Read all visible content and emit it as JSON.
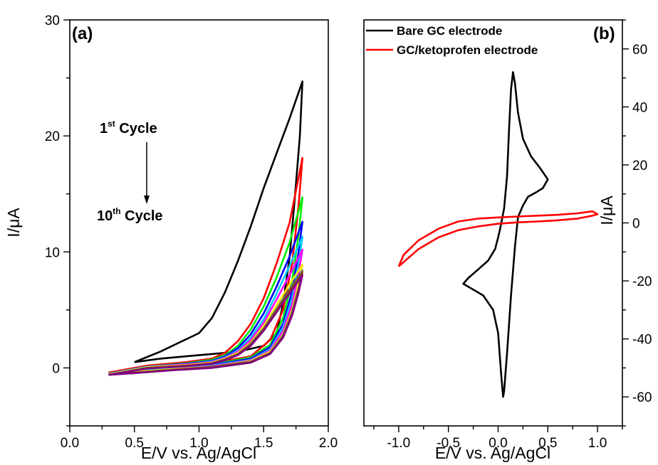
{
  "chart_data": [
    {
      "type": "line",
      "panel_label": "(a)",
      "xlabel": "E/V vs. Ag/AgCl",
      "ylabel": "I/μA",
      "xlim": [
        0.0,
        2.0
      ],
      "ylim": [
        -5,
        30
      ],
      "x_ticks": [
        "0.0",
        "0.5",
        "1.0",
        "1.5",
        "2.0"
      ],
      "y_ticks": [
        "0",
        "10",
        "20",
        "30"
      ],
      "annotation": {
        "first": {
          "number": "1",
          "sup": "st",
          "rest": " Cycle"
        },
        "last": {
          "number": "10",
          "sup": "th",
          "rest": " Cycle"
        }
      },
      "series": [
        {
          "color": "#000000",
          "points": [
            [
              0.5,
              0.5
            ],
            [
              0.7,
              1.4
            ],
            [
              0.85,
              2.2
            ],
            [
              1.0,
              3.0
            ],
            [
              1.1,
              4.3
            ],
            [
              1.2,
              6.5
            ],
            [
              1.3,
              9.2
            ],
            [
              1.4,
              12.2
            ],
            [
              1.5,
              15.5
            ],
            [
              1.6,
              18.5
            ],
            [
              1.7,
              21.5
            ],
            [
              1.8,
              24.7
            ],
            [
              1.78,
              20.0
            ],
            [
              1.74,
              14.5
            ],
            [
              1.7,
              9.5
            ],
            [
              1.65,
              5.5
            ],
            [
              1.6,
              3.0
            ],
            [
              1.5,
              1.9
            ],
            [
              1.3,
              1.4
            ],
            [
              1.1,
              1.2
            ],
            [
              0.9,
              1.0
            ],
            [
              0.7,
              0.8
            ],
            [
              0.5,
              0.5
            ]
          ]
        },
        {
          "color": "#ff0000",
          "points": [
            [
              0.3,
              -0.4
            ],
            [
              0.6,
              0.2
            ],
            [
              0.9,
              0.5
            ],
            [
              1.1,
              0.8
            ],
            [
              1.2,
              1.3
            ],
            [
              1.3,
              2.3
            ],
            [
              1.4,
              3.8
            ],
            [
              1.5,
              6.0
            ],
            [
              1.6,
              9.0
            ],
            [
              1.7,
              12.5
            ],
            [
              1.8,
              18.1
            ],
            [
              1.77,
              14.0
            ],
            [
              1.72,
              9.0
            ],
            [
              1.65,
              5.0
            ],
            [
              1.55,
              2.4
            ],
            [
              1.4,
              1.0
            ],
            [
              1.1,
              0.4
            ],
            [
              0.8,
              0.1
            ],
            [
              0.5,
              -0.2
            ],
            [
              0.3,
              -0.4
            ]
          ]
        },
        {
          "color": "#00ee00",
          "points": [
            [
              0.3,
              -0.5
            ],
            [
              0.6,
              0.1
            ],
            [
              0.9,
              0.4
            ],
            [
              1.1,
              0.7
            ],
            [
              1.2,
              1.1
            ],
            [
              1.3,
              1.9
            ],
            [
              1.4,
              3.3
            ],
            [
              1.5,
              5.3
            ],
            [
              1.6,
              7.8
            ],
            [
              1.7,
              10.8
            ],
            [
              1.8,
              14.7
            ],
            [
              1.77,
              11.5
            ],
            [
              1.72,
              7.5
            ],
            [
              1.65,
              4.3
            ],
            [
              1.55,
              2.0
            ],
            [
              1.4,
              0.9
            ],
            [
              1.1,
              0.3
            ],
            [
              0.8,
              0.0
            ],
            [
              0.5,
              -0.3
            ],
            [
              0.3,
              -0.5
            ]
          ]
        },
        {
          "color": "#0000ff",
          "points": [
            [
              0.3,
              -0.5
            ],
            [
              0.6,
              0.1
            ],
            [
              0.9,
              0.35
            ],
            [
              1.1,
              0.6
            ],
            [
              1.2,
              1.0
            ],
            [
              1.3,
              1.7
            ],
            [
              1.4,
              2.9
            ],
            [
              1.5,
              4.7
            ],
            [
              1.6,
              7.0
            ],
            [
              1.7,
              9.6
            ],
            [
              1.8,
              12.6
            ],
            [
              1.77,
              10.0
            ],
            [
              1.72,
              6.6
            ],
            [
              1.65,
              3.8
            ],
            [
              1.55,
              1.8
            ],
            [
              1.4,
              0.8
            ],
            [
              1.1,
              0.25
            ],
            [
              0.8,
              0.0
            ],
            [
              0.5,
              -0.3
            ],
            [
              0.3,
              -0.5
            ]
          ]
        },
        {
          "color": "#00ccff",
          "points": [
            [
              0.3,
              -0.5
            ],
            [
              0.6,
              0.1
            ],
            [
              0.9,
              0.3
            ],
            [
              1.1,
              0.55
            ],
            [
              1.2,
              0.9
            ],
            [
              1.3,
              1.5
            ],
            [
              1.4,
              2.6
            ],
            [
              1.5,
              4.2
            ],
            [
              1.6,
              6.4
            ],
            [
              1.7,
              8.8
            ],
            [
              1.8,
              11.3
            ],
            [
              1.77,
              9.0
            ],
            [
              1.72,
              6.0
            ],
            [
              1.65,
              3.5
            ],
            [
              1.55,
              1.6
            ],
            [
              1.4,
              0.7
            ],
            [
              1.1,
              0.2
            ],
            [
              0.8,
              -0.05
            ],
            [
              0.5,
              -0.3
            ],
            [
              0.3,
              -0.5
            ]
          ]
        },
        {
          "color": "#ff00ff",
          "points": [
            [
              0.3,
              -0.55
            ],
            [
              0.6,
              0.05
            ],
            [
              0.9,
              0.3
            ],
            [
              1.1,
              0.5
            ],
            [
              1.2,
              0.85
            ],
            [
              1.3,
              1.4
            ],
            [
              1.4,
              2.4
            ],
            [
              1.5,
              3.9
            ],
            [
              1.6,
              5.9
            ],
            [
              1.7,
              8.0
            ],
            [
              1.8,
              10.2
            ],
            [
              1.77,
              8.2
            ],
            [
              1.72,
              5.5
            ],
            [
              1.65,
              3.2
            ],
            [
              1.55,
              1.5
            ],
            [
              1.4,
              0.65
            ],
            [
              1.1,
              0.15
            ],
            [
              0.8,
              -0.1
            ],
            [
              0.5,
              -0.35
            ],
            [
              0.3,
              -0.55
            ]
          ]
        },
        {
          "color": "#ffee00",
          "points": [
            [
              0.3,
              -0.55
            ],
            [
              0.6,
              0.05
            ],
            [
              0.9,
              0.25
            ],
            [
              1.1,
              0.45
            ],
            [
              1.2,
              0.8
            ],
            [
              1.3,
              1.3
            ],
            [
              1.4,
              2.2
            ],
            [
              1.5,
              3.6
            ],
            [
              1.6,
              5.4
            ],
            [
              1.7,
              7.2
            ],
            [
              1.8,
              8.9
            ],
            [
              1.77,
              7.3
            ],
            [
              1.72,
              5.0
            ],
            [
              1.65,
              2.9
            ],
            [
              1.55,
              1.4
            ],
            [
              1.4,
              0.6
            ],
            [
              1.1,
              0.1
            ],
            [
              0.8,
              -0.1
            ],
            [
              0.5,
              -0.35
            ],
            [
              0.3,
              -0.55
            ]
          ]
        },
        {
          "color": "#666666",
          "points": [
            [
              0.3,
              -0.6
            ],
            [
              0.6,
              0.0
            ],
            [
              0.9,
              0.2
            ],
            [
              1.1,
              0.4
            ],
            [
              1.2,
              0.75
            ],
            [
              1.3,
              1.2
            ],
            [
              1.4,
              2.1
            ],
            [
              1.5,
              3.4
            ],
            [
              1.6,
              5.1
            ],
            [
              1.7,
              6.8
            ],
            [
              1.8,
              8.4
            ],
            [
              1.77,
              6.9
            ],
            [
              1.72,
              4.8
            ],
            [
              1.65,
              2.8
            ],
            [
              1.55,
              1.3
            ],
            [
              1.4,
              0.55
            ],
            [
              1.1,
              0.1
            ],
            [
              0.8,
              -0.15
            ],
            [
              0.5,
              -0.4
            ],
            [
              0.3,
              -0.6
            ]
          ]
        },
        {
          "color": "#8b4513",
          "points": [
            [
              0.3,
              -0.6
            ],
            [
              0.6,
              0.0
            ],
            [
              0.9,
              0.2
            ],
            [
              1.1,
              0.4
            ],
            [
              1.2,
              0.7
            ],
            [
              1.3,
              1.15
            ],
            [
              1.4,
              2.0
            ],
            [
              1.5,
              3.3
            ],
            [
              1.6,
              4.9
            ],
            [
              1.7,
              6.6
            ],
            [
              1.8,
              8.2
            ],
            [
              1.77,
              6.7
            ],
            [
              1.72,
              4.6
            ],
            [
              1.65,
              2.7
            ],
            [
              1.55,
              1.25
            ],
            [
              1.4,
              0.5
            ],
            [
              1.1,
              0.05
            ],
            [
              0.8,
              -0.15
            ],
            [
              0.5,
              -0.4
            ],
            [
              0.3,
              -0.6
            ]
          ]
        },
        {
          "color": "#800080",
          "points": [
            [
              0.3,
              -0.6
            ],
            [
              0.6,
              -0.05
            ],
            [
              0.9,
              0.15
            ],
            [
              1.1,
              0.35
            ],
            [
              1.2,
              0.65
            ],
            [
              1.3,
              1.1
            ],
            [
              1.4,
              1.9
            ],
            [
              1.5,
              3.2
            ],
            [
              1.6,
              4.8
            ],
            [
              1.7,
              6.4
            ],
            [
              1.8,
              8.0
            ],
            [
              1.77,
              6.5
            ],
            [
              1.72,
              4.5
            ],
            [
              1.65,
              2.6
            ],
            [
              1.55,
              1.2
            ],
            [
              1.4,
              0.45
            ],
            [
              1.1,
              0.0
            ],
            [
              0.8,
              -0.2
            ],
            [
              0.5,
              -0.45
            ],
            [
              0.3,
              -0.6
            ]
          ]
        }
      ]
    },
    {
      "type": "line",
      "panel_label": "(b)",
      "xlabel": "E/V vs. Ag/AgCl",
      "ylabel": "I/μA",
      "xlim": [
        -1.35,
        1.25
      ],
      "ylim": [
        -70,
        70
      ],
      "x_ticks": [
        "-1.0",
        "-0.5",
        "0.0",
        "0.5",
        "1.0"
      ],
      "y_ticks": [
        "-60",
        "-40",
        "-20",
        "0",
        "20",
        "40",
        "60"
      ],
      "y_axis_side": "right",
      "legend": [
        {
          "label": "Bare GC electrode",
          "color": "#000000"
        },
        {
          "label": "GC/ketoprofen electrode",
          "color": "#ff0000"
        }
      ],
      "series": [
        {
          "name": "Bare GC electrode",
          "color": "#000000",
          "points": [
            [
              0.02,
              -2
            ],
            [
              0.06,
              5
            ],
            [
              0.09,
              16
            ],
            [
              0.11,
              32
            ],
            [
              0.13,
              46
            ],
            [
              0.15,
              52
            ],
            [
              0.17,
              48
            ],
            [
              0.2,
              38
            ],
            [
              0.25,
              29
            ],
            [
              0.33,
              23
            ],
            [
              0.42,
              19
            ],
            [
              0.5,
              15
            ],
            [
              0.45,
              12
            ],
            [
              0.38,
              10.5
            ],
            [
              0.3,
              9
            ],
            [
              0.25,
              6
            ],
            [
              0.2,
              2
            ],
            [
              0.17,
              -8
            ],
            [
              0.13,
              -25
            ],
            [
              0.09,
              -45
            ],
            [
              0.06,
              -58
            ],
            [
              0.05,
              -60
            ],
            [
              0.03,
              -52
            ],
            [
              0.0,
              -38
            ],
            [
              -0.05,
              -30
            ],
            [
              -0.15,
              -25
            ],
            [
              -0.3,
              -22
            ],
            [
              -0.35,
              -21
            ],
            [
              -0.3,
              -19
            ],
            [
              -0.2,
              -16
            ],
            [
              -0.1,
              -13
            ],
            [
              -0.03,
              -9
            ],
            [
              0.0,
              -5
            ],
            [
              0.02,
              -2
            ]
          ]
        },
        {
          "name": "GC/ketoprofen electrode",
          "color": "#ff0000",
          "points": [
            [
              -1.0,
              -15
            ],
            [
              -0.8,
              -9
            ],
            [
              -0.6,
              -5
            ],
            [
              -0.4,
              -2.5
            ],
            [
              -0.2,
              -1.2
            ],
            [
              0.0,
              -0.3
            ],
            [
              0.2,
              0.2
            ],
            [
              0.4,
              0.5
            ],
            [
              0.6,
              0.9
            ],
            [
              0.8,
              1.5
            ],
            [
              0.95,
              2.5
            ],
            [
              1.0,
              3
            ],
            [
              0.95,
              4
            ],
            [
              0.8,
              3.3
            ],
            [
              0.6,
              2.8
            ],
            [
              0.4,
              2.5
            ],
            [
              0.2,
              2.2
            ],
            [
              0.0,
              1.9
            ],
            [
              -0.2,
              1.5
            ],
            [
              -0.4,
              0.5
            ],
            [
              -0.6,
              -2
            ],
            [
              -0.8,
              -6
            ],
            [
              -0.95,
              -11
            ],
            [
              -1.0,
              -15
            ]
          ]
        }
      ]
    }
  ]
}
